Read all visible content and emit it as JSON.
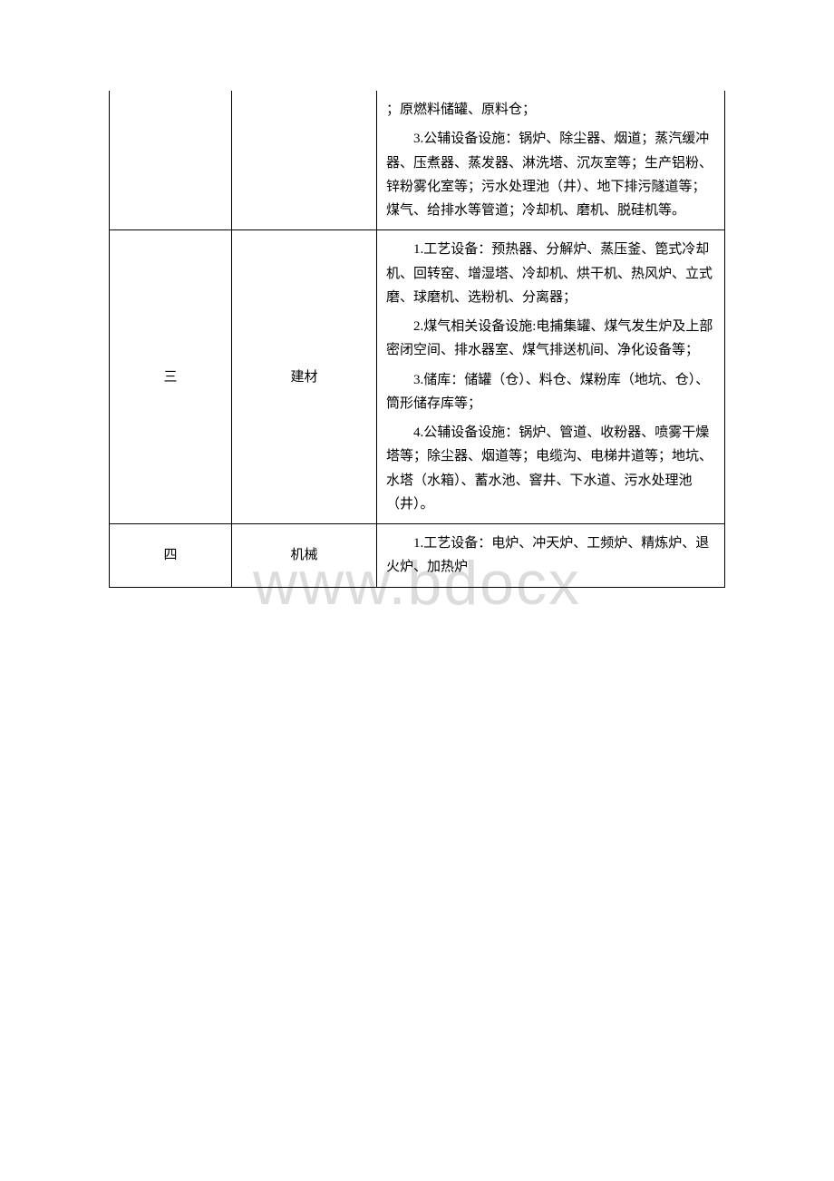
{
  "watermark": "www.bdocx",
  "table": {
    "rows": [
      {
        "num": "",
        "category": "",
        "desc_parts": [
          "；原燃料储罐、原料仓；",
          "3.公辅设备设施：锅炉、除尘器、烟道；蒸汽缓冲器、压煮器、蒸发器、淋洗塔、沉灰室等；生产铝粉、锌粉雾化室等；污水处理池（井）、地下排污隧道等；煤气、给排水等管道；冷却机、磨机、脱硅机等。"
        ]
      },
      {
        "num": "三",
        "category": "建材",
        "desc_parts": [
          "1.工艺设备：预热器、分解炉、蒸压釜、箆式冷却机、回转窑、增湿塔、冷却机、烘干机、热风炉、立式磨、球磨机、选粉机、分离器；",
          "2.煤气相关设备设施:电捕集罐、煤气发生炉及上部密闭空间、排水器室、煤气排送机间、净化设备等；",
          "3.储库：储罐（仓）、料仓、煤粉库（地坑、仓）、筒形储存库等；",
          "4.公辅设备设施：锅炉、管道、收粉器、喷雾干燥塔等；除尘器、烟道等；电缆沟、电梯井道等；地坑、水塔（水箱）、蓄水池、窨井、下水道、污水处理池（井）。"
        ]
      },
      {
        "num": "四",
        "category": "机械",
        "desc_parts": [
          "1.工艺设备：电炉、冲天炉、工频炉、精炼炉、退火炉、加热炉"
        ]
      }
    ]
  }
}
